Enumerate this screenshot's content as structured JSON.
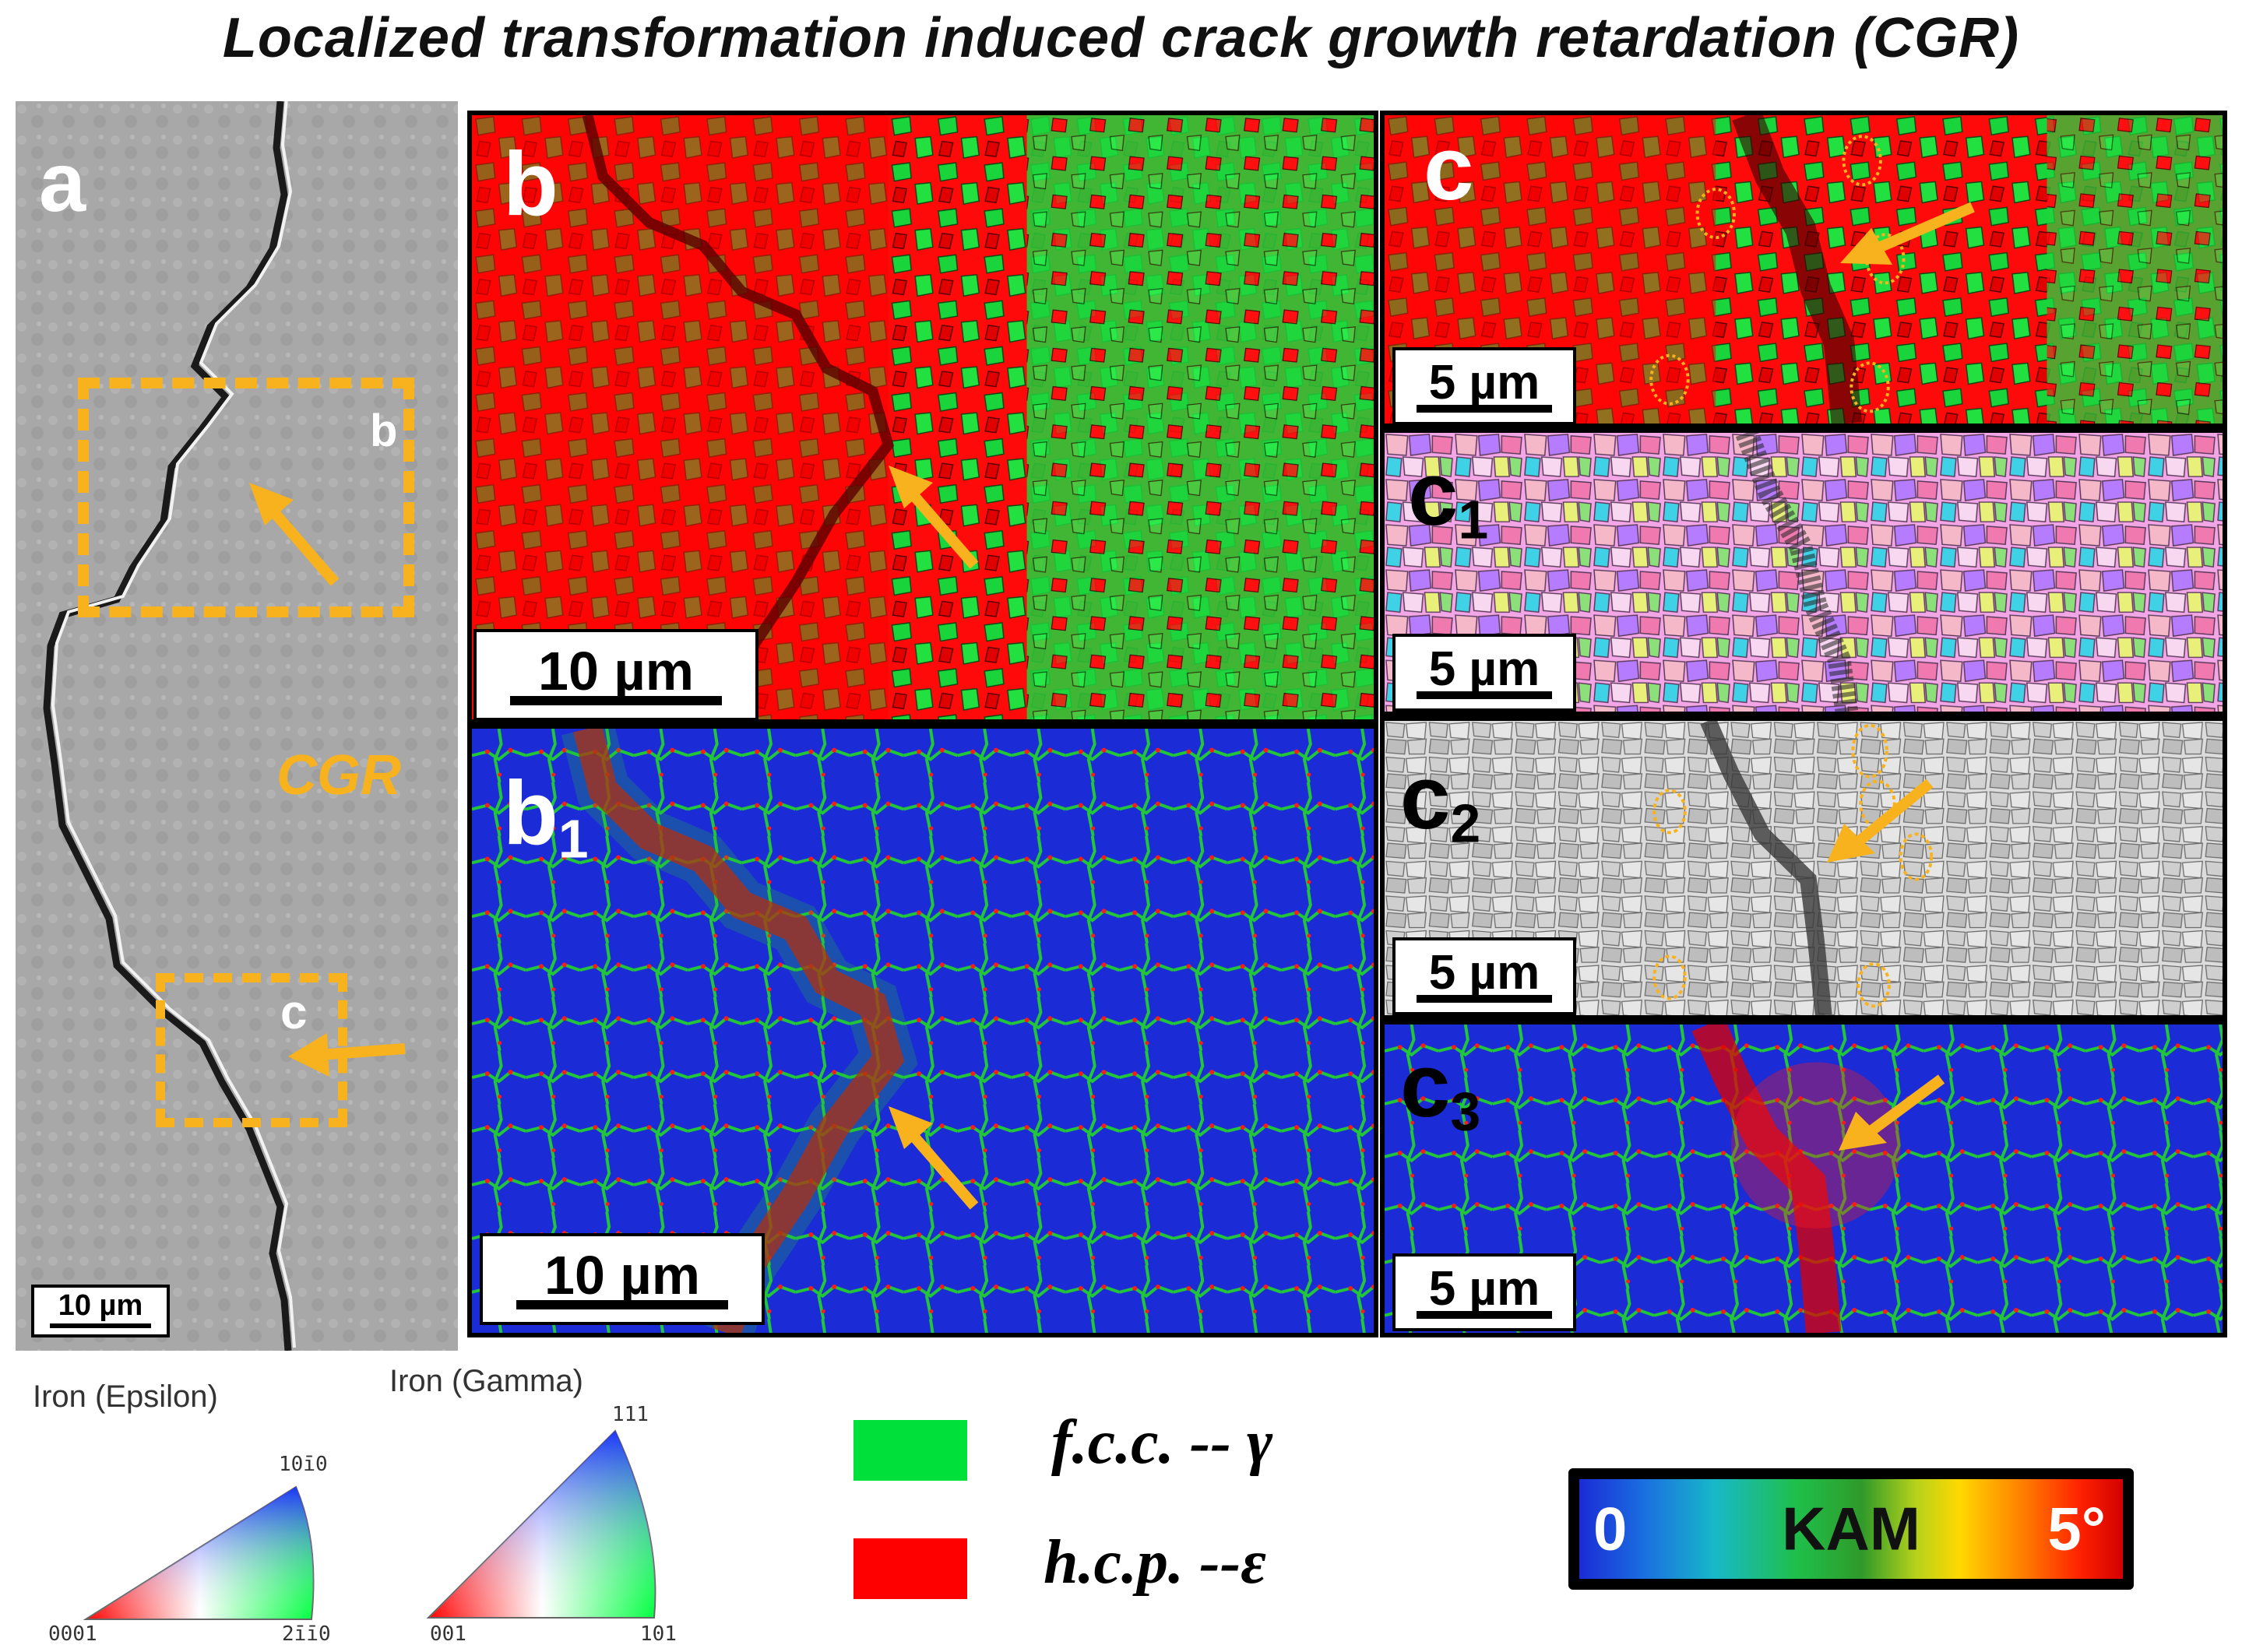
{
  "title": "Localized transformation induced crack growth retardation (CGR)",
  "panel_a": {
    "label": "a",
    "box_b_label": "b",
    "box_c_label": "c",
    "region_label": "CGR",
    "scalebar": "10 µm"
  },
  "panel_b": {
    "label": "b",
    "scalebar": "10 µm"
  },
  "panel_b1": {
    "label": "b",
    "label_sub": "1",
    "scalebar": "10 µm"
  },
  "panel_c": {
    "label": "c",
    "scalebar": "5 µm"
  },
  "panel_c1": {
    "label": "c",
    "label_sub": "1",
    "scalebar": "5 µm"
  },
  "panel_c2": {
    "label": "c",
    "label_sub": "2",
    "scalebar": "5 µm"
  },
  "panel_c3": {
    "label": "c",
    "label_sub": "3",
    "scalebar": "5 µm"
  },
  "ipf_legends": [
    {
      "name": "Iron (Epsilon)",
      "corner_top": "10ī0",
      "corner_left": "0001",
      "corner_right": "2īī0"
    },
    {
      "name": "Iron (Gamma)",
      "corner_top": "111",
      "corner_left": "001",
      "corner_right": "101"
    }
  ],
  "phase_legend": [
    {
      "label": "f.c.c. -- γ",
      "color": "#00e03a"
    },
    {
      "label": "h.c.p. --ε",
      "color": "#ff0000"
    }
  ],
  "kam_scale": {
    "min_label": "0",
    "title": "KAM",
    "max_label": "5°"
  },
  "colors": {
    "accent_orange": "#f7b21e",
    "fcc_green": "#00e03a",
    "hcp_red": "#ff0000",
    "kam_blue": "#1b2bd6"
  }
}
